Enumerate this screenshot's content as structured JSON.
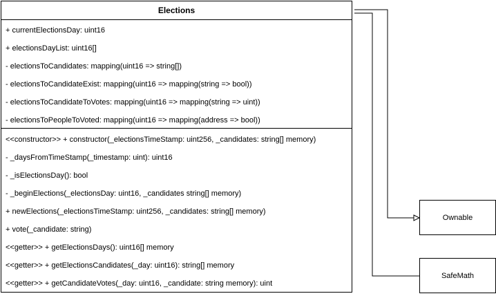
{
  "main_class": {
    "name": "Elections",
    "attributes": [
      "+ currentElectionsDay: uint16",
      "+ electionsDayList: uint16[]",
      "- electionsToCandidates: mapping(uint16 => string[])",
      "- electionsToCandidateExist: mapping(uint16 => mapping(string => bool))",
      "- electionsToCandidateToVotes: mapping(uint16 => mapping(string => uint))",
      "- electionsToPeopleToVoted: mapping(uint16 => mapping(address => bool))"
    ],
    "operations": [
      "<<constructor>> + constructor(_electionsTimeStamp: uint256, _candidates: string[] memory)",
      "- _daysFromTimeStamp(_timestamp: uint): uint16",
      "- _isElectionsDay(): bool",
      "- _beginElections(_electionsDay: uint16, _candidates string[] memory)",
      "+ newElections(_electionsTimeStamp: uint256, _candidates: string[] memory)",
      "+ vote(_candidate: string)",
      "<<getter>> + getElectionsDays(): uint16[] memory",
      "<<getter>> + getElectionsCandidates(_day: uint16): string[] memory",
      "<<getter>> + getCandidateVotes(_day: uint16, _candidate: string memory): uint"
    ]
  },
  "related_classes": {
    "ownable": "Ownable",
    "safemath": "SafeMath"
  },
  "colors": {
    "line": "#000000",
    "background": "#ffffff"
  }
}
